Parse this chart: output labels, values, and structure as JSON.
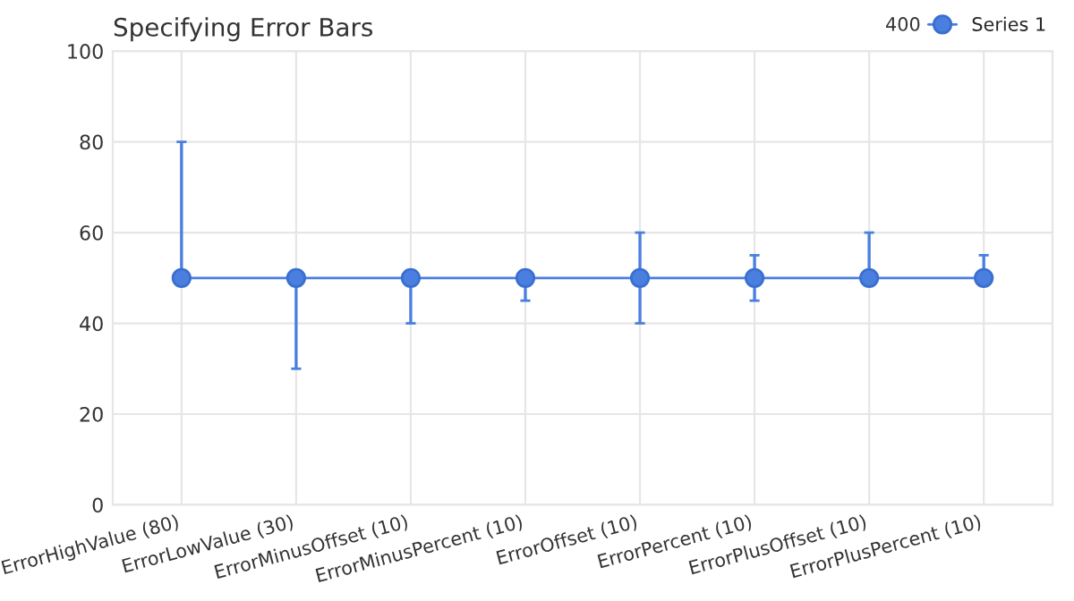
{
  "chart_data": {
    "type": "line",
    "title": "Specifying Error Bars",
    "categories": [
      "ErrorHighValue (80)",
      "ErrorLowValue (30)",
      "ErrorMinusOffset (10)",
      "ErrorMinusPercent (10)",
      "ErrorOffset (10)",
      "ErrorPercent (10)",
      "ErrorPlusOffset (10)",
      "ErrorPlusPercent (10)"
    ],
    "series": [
      {
        "name": "Series 1",
        "color": "#4a7fe0",
        "values": [
          50,
          50,
          50,
          50,
          50,
          50,
          50,
          50
        ],
        "errors": [
          [
            50,
            80
          ],
          [
            30,
            50
          ],
          [
            40,
            50
          ],
          [
            45,
            50
          ],
          10,
          5,
          [
            50,
            60
          ],
          [
            50,
            55
          ]
        ]
      }
    ],
    "ylim": [
      0,
      100
    ],
    "yticks": [
      0,
      20,
      40,
      60,
      80,
      100
    ],
    "grid": true,
    "legend": "top right",
    "legend_title": "400",
    "marker": "circle",
    "line_style": "solid"
  }
}
